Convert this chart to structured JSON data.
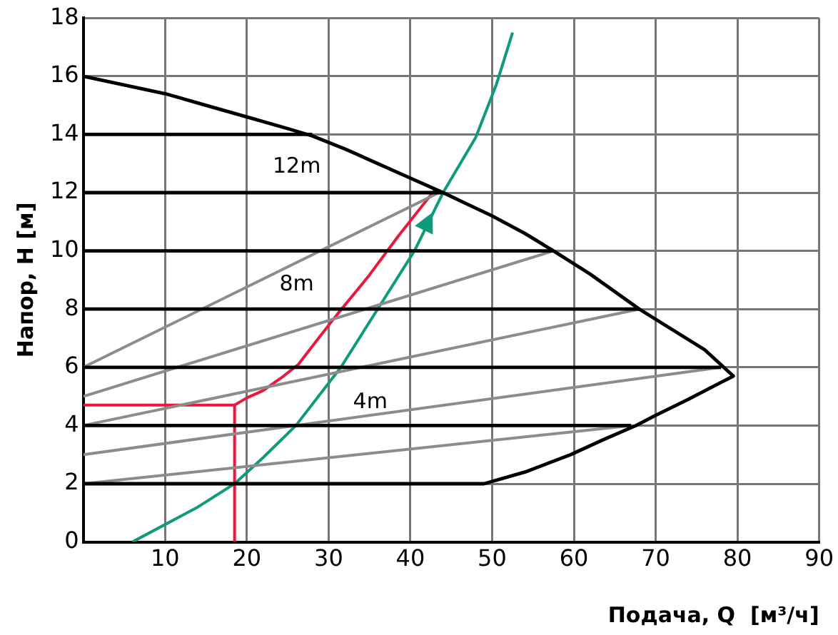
{
  "chart_data": {
    "type": "line",
    "xlabel": "Подача, Q  [м³/ч]",
    "ylabel": "Напор, H [м]",
    "xlim": [
      0,
      90
    ],
    "xticks": [
      {
        "value": 0,
        "label": null
      },
      10,
      20,
      30,
      40,
      50,
      60,
      70,
      80,
      90
    ],
    "ylim": [
      0,
      18
    ],
    "yticks": [
      0,
      2,
      4,
      6,
      8,
      10,
      12,
      14,
      16,
      18
    ],
    "grid": true,
    "legend": false,
    "marker": "none",
    "line_style": "solid",
    "series": [
      {
        "color": "#000000",
        "x": [
          0,
          5,
          10,
          15,
          20,
          25,
          28,
          32,
          36,
          40,
          44,
          47,
          50,
          54,
          57.5,
          62,
          68,
          72,
          76,
          79.5,
          74,
          70,
          67.6,
          63.5,
          59.6,
          54,
          49,
          0
        ],
        "values": [
          16,
          15.7,
          15.4,
          15,
          14.6,
          14.2,
          13.95,
          13.5,
          13,
          12.5,
          12,
          11.6,
          11.2,
          10.6,
          10,
          9.2,
          8,
          7.3,
          6.6,
          5.7,
          4.9,
          4.35,
          4,
          3.5,
          3,
          2.4,
          2,
          2
        ]
      },
      {
        "color": "#000000",
        "x": [
          0,
          28
        ],
        "values": [
          14,
          14
        ]
      },
      {
        "color": "#000000",
        "x": [
          0,
          44
        ],
        "values": [
          12,
          12
        ]
      },
      {
        "color": "#000000",
        "x": [
          0,
          57.5
        ],
        "values": [
          10,
          10
        ]
      },
      {
        "color": "#000000",
        "x": [
          0,
          68
        ],
        "values": [
          8,
          8
        ]
      },
      {
        "color": "#000000",
        "x": [
          0,
          78
        ],
        "values": [
          6,
          6
        ]
      },
      {
        "color": "#000000",
        "x": [
          0,
          67
        ],
        "values": [
          4,
          4
        ]
      },
      {
        "color": "#8c8c8c",
        "x": [
          0,
          43.5
        ],
        "values": [
          6,
          12
        ]
      },
      {
        "color": "#8c8c8c",
        "x": [
          0,
          57.5
        ],
        "values": [
          5,
          10
        ]
      },
      {
        "color": "#8c8c8c",
        "x": [
          0,
          68
        ],
        "values": [
          4,
          8
        ]
      },
      {
        "color": "#8c8c8c",
        "x": [
          0,
          78
        ],
        "values": [
          3,
          6
        ]
      },
      {
        "color": "#8c8c8c",
        "x": [
          0,
          67
        ],
        "values": [
          2,
          4
        ]
      },
      {
        "color": "#e8193c",
        "x": [
          18.5,
          18.5,
          0
        ],
        "values": [
          0,
          4.7,
          4.7
        ]
      },
      {
        "color": "#e8193c",
        "x": [
          18.5,
          20,
          22,
          24.5,
          26.3,
          28.5,
          31,
          34.8,
          38.5,
          43
        ],
        "values": [
          4.7,
          4.95,
          5.2,
          5.7,
          6.1,
          6.9,
          7.8,
          9.1,
          10.5,
          12.1
        ]
      },
      {
        "color": "#109a7c",
        "x": [
          6,
          10,
          14,
          18.5,
          22,
          26,
          31.5,
          36,
          40.5,
          44,
          48,
          50.5,
          52.5
        ],
        "values": [
          0,
          0.6,
          1.2,
          2,
          2.9,
          4,
          6,
          8,
          10,
          12,
          13.9,
          15.7,
          17.5
        ]
      }
    ],
    "annotations": [
      "12m",
      "8m",
      "4m"
    ]
  }
}
